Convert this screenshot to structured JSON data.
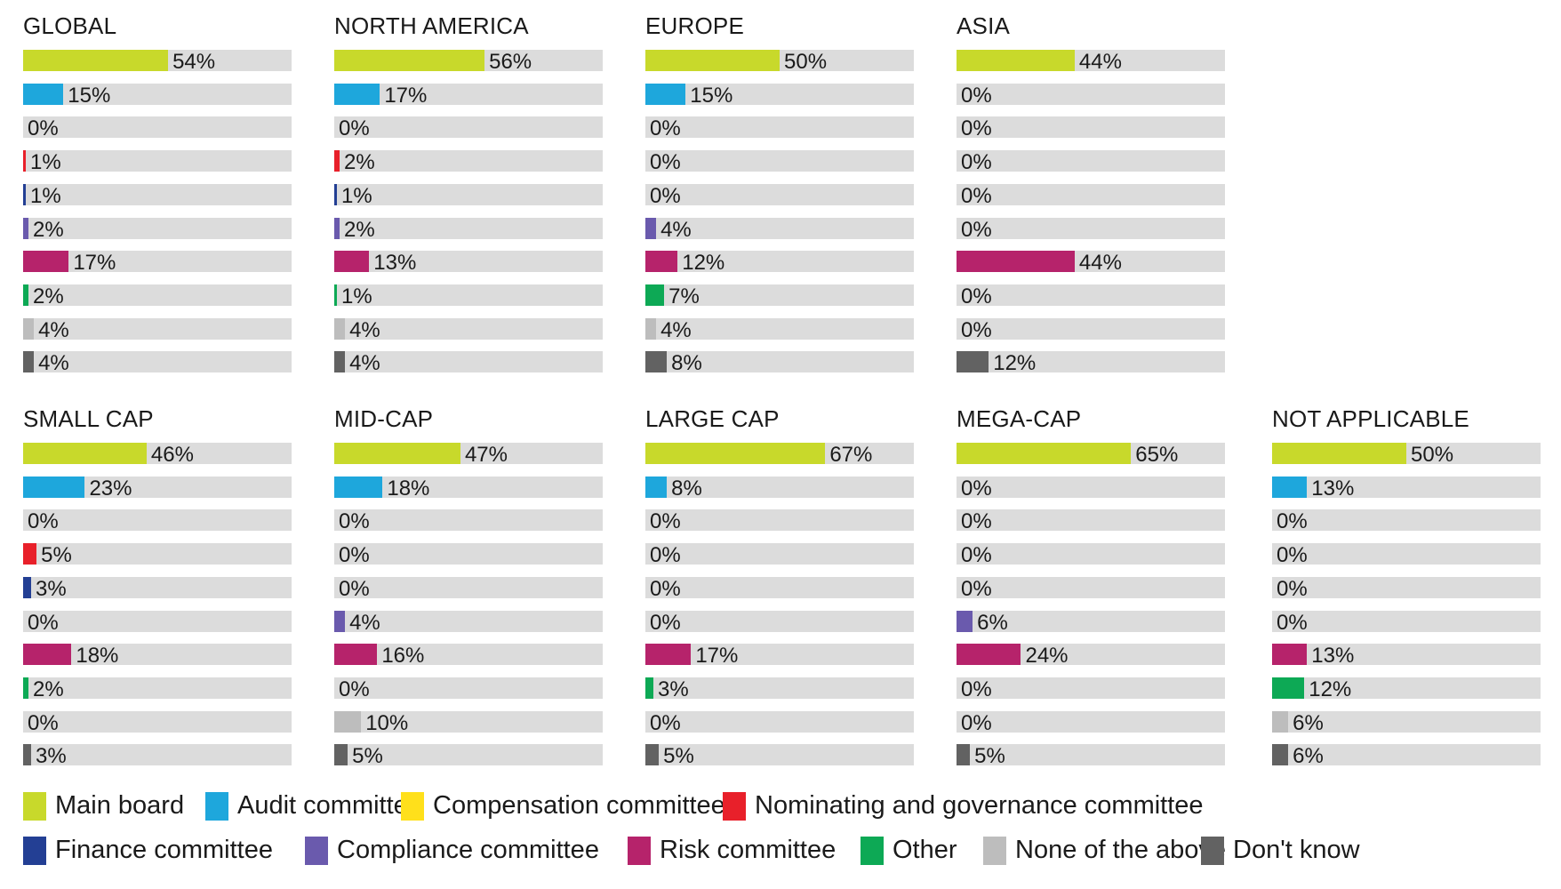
{
  "chart_data": [
    {
      "type": "bar",
      "title": "GLOBAL",
      "categories": [
        "Main board",
        "Audit committee",
        "Compensation committee",
        "Nominating and governance committee",
        "Finance committee",
        "Compliance committee",
        "Risk committee",
        "Other",
        "None of the above",
        "Don't know"
      ],
      "values": [
        54,
        15,
        0,
        1,
        1,
        2,
        17,
        2,
        4,
        4
      ],
      "unit": "%",
      "xlim": [
        0,
        100
      ]
    },
    {
      "type": "bar",
      "title": "NORTH AMERICA",
      "categories": [
        "Main board",
        "Audit committee",
        "Compensation committee",
        "Nominating and governance committee",
        "Finance committee",
        "Compliance committee",
        "Risk committee",
        "Other",
        "None of the above",
        "Don't know"
      ],
      "values": [
        56,
        17,
        0,
        2,
        1,
        2,
        13,
        1,
        4,
        4
      ],
      "unit": "%",
      "xlim": [
        0,
        100
      ]
    },
    {
      "type": "bar",
      "title": "EUROPE",
      "categories": [
        "Main board",
        "Audit committee",
        "Compensation committee",
        "Nominating and governance committee",
        "Finance committee",
        "Compliance committee",
        "Risk committee",
        "Other",
        "None of the above",
        "Don't know"
      ],
      "values": [
        50,
        15,
        0,
        0,
        0,
        4,
        12,
        7,
        4,
        8
      ],
      "unit": "%",
      "xlim": [
        0,
        100
      ]
    },
    {
      "type": "bar",
      "title": "ASIA",
      "categories": [
        "Main board",
        "Audit committee",
        "Compensation committee",
        "Nominating and governance committee",
        "Finance committee",
        "Compliance committee",
        "Risk committee",
        "Other",
        "None of the above",
        "Don't know"
      ],
      "values": [
        44,
        0,
        0,
        0,
        0,
        0,
        44,
        0,
        0,
        12
      ],
      "unit": "%",
      "xlim": [
        0,
        100
      ]
    },
    {
      "type": "bar",
      "title": "SMALL CAP",
      "categories": [
        "Main board",
        "Audit committee",
        "Compensation committee",
        "Nominating and governance committee",
        "Finance committee",
        "Compliance committee",
        "Risk committee",
        "Other",
        "None of the above",
        "Don't know"
      ],
      "values": [
        46,
        23,
        0,
        5,
        3,
        0,
        18,
        2,
        0,
        3
      ],
      "unit": "%",
      "xlim": [
        0,
        100
      ]
    },
    {
      "type": "bar",
      "title": "MID-CAP",
      "categories": [
        "Main board",
        "Audit committee",
        "Compensation committee",
        "Nominating and governance committee",
        "Finance committee",
        "Compliance committee",
        "Risk committee",
        "Other",
        "None of the above",
        "Don't know"
      ],
      "values": [
        47,
        18,
        0,
        0,
        0,
        4,
        16,
        0,
        10,
        5
      ],
      "unit": "%",
      "xlim": [
        0,
        100
      ]
    },
    {
      "type": "bar",
      "title": "LARGE CAP",
      "categories": [
        "Main board",
        "Audit committee",
        "Compensation committee",
        "Nominating and governance committee",
        "Finance committee",
        "Compliance committee",
        "Risk committee",
        "Other",
        "None of the above",
        "Don't know"
      ],
      "values": [
        67,
        8,
        0,
        0,
        0,
        0,
        17,
        3,
        0,
        5
      ],
      "unit": "%",
      "xlim": [
        0,
        100
      ]
    },
    {
      "type": "bar",
      "title": "MEGA-CAP",
      "categories": [
        "Main board",
        "Audit committee",
        "Compensation committee",
        "Nominating and governance committee",
        "Finance committee",
        "Compliance committee",
        "Risk committee",
        "Other",
        "None of the above",
        "Don't know"
      ],
      "values": [
        65,
        0,
        0,
        0,
        0,
        6,
        24,
        0,
        0,
        5
      ],
      "unit": "%",
      "xlim": [
        0,
        100
      ]
    },
    {
      "type": "bar",
      "title": "NOT APPLICABLE",
      "categories": [
        "Main board",
        "Audit committee",
        "Compensation committee",
        "Nominating and governance committee",
        "Finance committee",
        "Compliance committee",
        "Risk committee",
        "Other",
        "None of the above",
        "Don't know"
      ],
      "values": [
        50,
        13,
        0,
        0,
        0,
        0,
        13,
        12,
        6,
        6
      ],
      "unit": "%",
      "xlim": [
        0,
        100
      ]
    }
  ],
  "legend": [
    {
      "label": "Main board",
      "color": "#c8d92b"
    },
    {
      "label": "Audit committee",
      "color": "#1ea7dc"
    },
    {
      "label": "Compensation committee",
      "color": "#ffe01b"
    },
    {
      "label": "Nominating and governance committee",
      "color": "#e8202a"
    },
    {
      "label": "Finance committee",
      "color": "#233f94"
    },
    {
      "label": "Compliance committee",
      "color": "#6a5aad"
    },
    {
      "label": "Risk committee",
      "color": "#b6236b"
    },
    {
      "label": "Other",
      "color": "#0da955"
    },
    {
      "label": "None of the above",
      "color": "#bdbdbd"
    },
    {
      "label": "Don't know",
      "color": "#626262"
    }
  ],
  "track_color": "#dcdcdc"
}
